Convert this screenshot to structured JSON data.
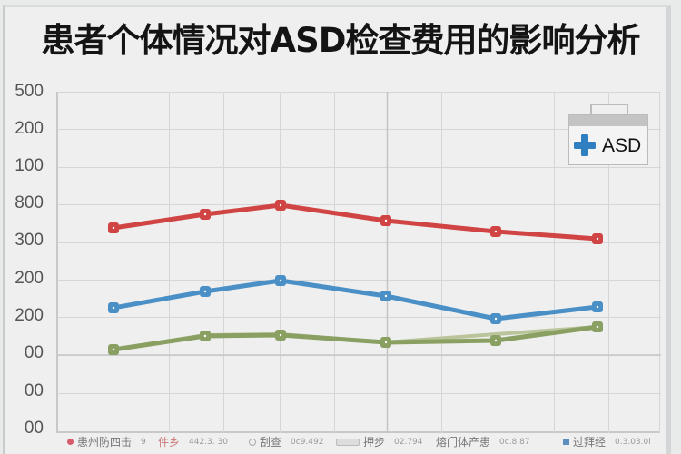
{
  "title": "患者个体情况对ASD检查费用的影响分析",
  "badge": {
    "label": "ASD",
    "icon": "medical-kit-cross-icon",
    "cross_color": "#2f7fc1"
  },
  "y_axis": {
    "tick_labels": [
      "500",
      "200",
      "100",
      "800",
      "300",
      "200",
      "200",
      "00",
      "00",
      "00"
    ]
  },
  "legend": [
    {
      "label": "患州防四击",
      "value": "9",
      "color": "#d65a6a",
      "marker": "dot"
    },
    {
      "label": "件乡",
      "value": "442.3. 30",
      "color": "#e08a8a",
      "marker": "none"
    },
    {
      "label": "刮查",
      "value": "0c9.492",
      "color": "#aaaaaa",
      "marker": "ring"
    },
    {
      "label": "押步",
      "value": "02.794",
      "color": "#bbbbbb",
      "marker": "bar"
    },
    {
      "label": "熔门体产患",
      "value": "0c.8.87",
      "color": "#888888",
      "marker": "none"
    },
    {
      "label": "过拜经",
      "value": "0.3.03.0l",
      "color": "#5a8fc0",
      "marker": "square"
    }
  ],
  "chart_data": {
    "type": "line",
    "title": "患者个体情况对ASD检查费用的影响分析",
    "xlabel": "",
    "ylabel": "",
    "y_tick_labels_top_to_bottom": [
      "500",
      "200",
      "100",
      "800",
      "300",
      "200",
      "200",
      "00",
      "00",
      "00"
    ],
    "grid": true,
    "legend_position": "bottom",
    "x": [
      1,
      2,
      3,
      4,
      5,
      6
    ],
    "y_scale_note": "values in grid units from bottom (0) to top (9); tick labels are garbled",
    "series": [
      {
        "name": "red",
        "color": "#d04444",
        "values": [
          5.8,
          6.2,
          6.5,
          5.9,
          5.6,
          5.4
        ]
      },
      {
        "name": "blue",
        "color": "#4a90c6",
        "values": [
          3.1,
          3.7,
          4.0,
          3.5,
          2.9,
          3.1
        ]
      },
      {
        "name": "green",
        "color": "#8aa062",
        "values": [
          2.2,
          2.6,
          2.6,
          2.3,
          2.4,
          2.8
        ]
      },
      {
        "name": "green-light",
        "color": "#b9c49a",
        "values": [
          2.2,
          2.6,
          2.6,
          2.3,
          2.6,
          2.8
        ]
      }
    ]
  }
}
